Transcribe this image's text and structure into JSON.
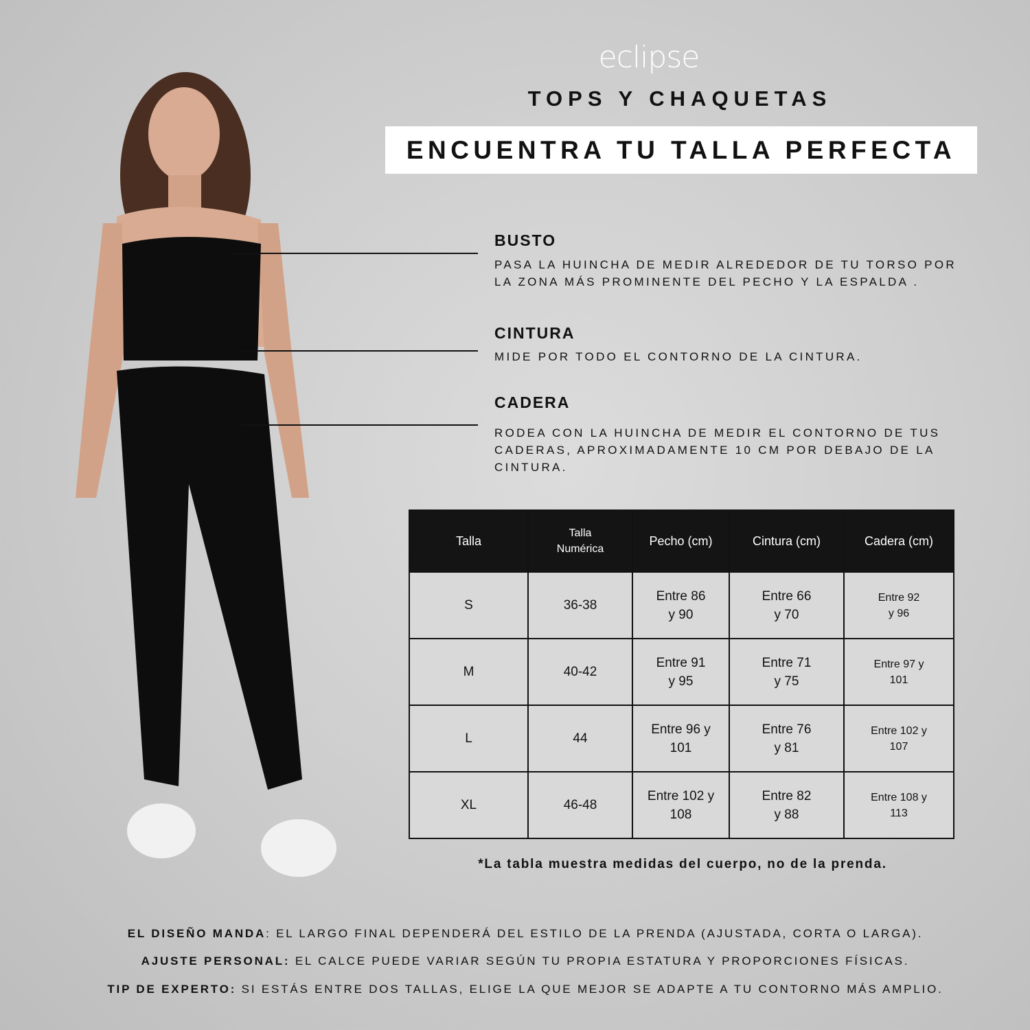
{
  "brand": "eclipse",
  "subtitle": "TOPS Y CHAQUETAS",
  "title": "ENCUENTRA TU TALLA PERFECTA",
  "measures": [
    {
      "label": "BUSTO",
      "text": "PASA LA HUINCHA DE MEDIR ALREDEDOR DE TU TORSO POR LA ZONA MÁS PROMINENTE DEL PECHO Y LA ESPALDA ."
    },
    {
      "label": "CINTURA",
      "text": "MIDE  POR TODO EL CONTORNO DE LA CINTURA."
    },
    {
      "label": "CADERA",
      "text": "RODEA CON LA HUINCHA DE MEDIR EL CONTORNO DE TUS CADERAS, APROXIMADAMENTE 10 CM POR DEBAJO DE LA CINTURA."
    }
  ],
  "table": {
    "headers": [
      "Talla",
      "Talla Numérica",
      "Pecho (cm)",
      "Cintura (cm)",
      "Cadera (cm)"
    ],
    "rows": [
      [
        "S",
        "36-38",
        "Entre 86 y 90",
        "Entre 66 y 70",
        "Entre 92 y 96"
      ],
      [
        "M",
        "40-42",
        "Entre 91 y 95",
        "Entre 71 y 75",
        "Entre 97 y 101"
      ],
      [
        "L",
        "44",
        "Entre 96 y 101",
        "Entre 76 y 81",
        "Entre 102 y 107"
      ],
      [
        "XL",
        "46-48",
        "Entre 102 y 108",
        "Entre 82 y 88",
        "Entre 108 y 113"
      ]
    ]
  },
  "note": "*La tabla muestra medidas del cuerpo, no de la prenda.",
  "tips": [
    {
      "label": "EL DISEÑO MANDA",
      "text": ": EL LARGO FINAL DEPENDERÁ DEL ESTILO DE LA PRENDA (AJUSTADA, CORTA O LARGA)."
    },
    {
      "label": "AJUSTE PERSONAL:",
      "text": " EL CALCE PUEDE VARIAR SEGÚN TU PROPIA ESTATURA Y PROPORCIONES FÍSICAS."
    },
    {
      "label": "TIP DE EXPERTO:",
      "text": " SI ESTÁS ENTRE DOS TALLAS, ELIGE LA QUE MEJOR SE ADAPTE A TU CONTORNO MÁS AMPLIO."
    }
  ]
}
